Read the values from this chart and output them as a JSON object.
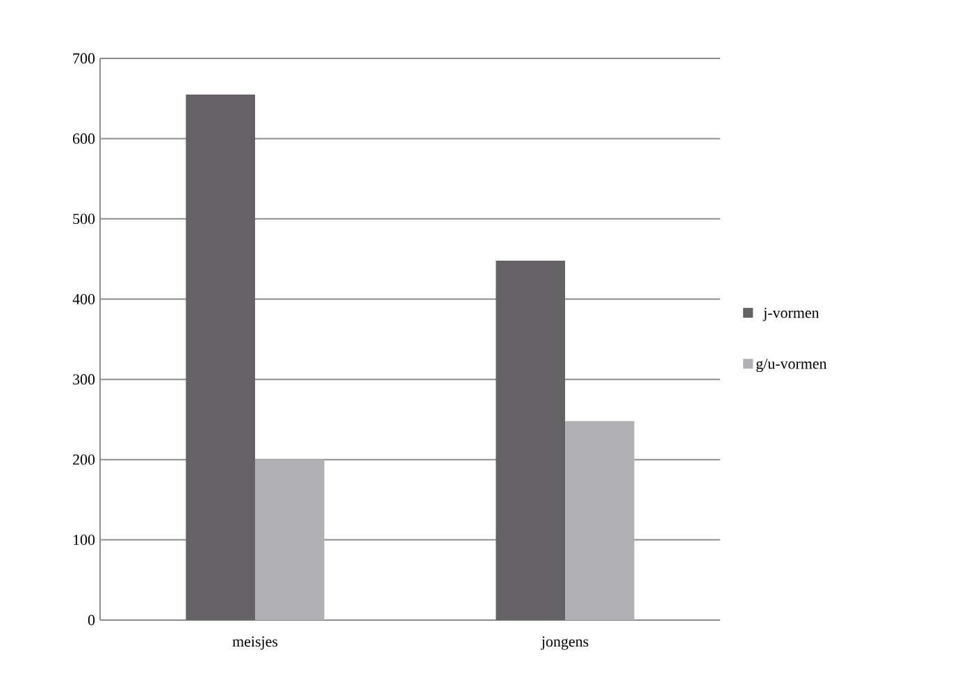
{
  "chart_data": {
    "type": "bar",
    "categories": [
      "meisjes",
      "jongens"
    ],
    "series": [
      {
        "name": "j-vormen",
        "color": "#646265",
        "values": [
          655,
          448
        ]
      },
      {
        "name": "g/u-vormen",
        "color": "#b1b0b4",
        "values": [
          200,
          248
        ]
      }
    ],
    "ylim": [
      0,
      700
    ],
    "yticks": [
      0,
      100,
      200,
      300,
      400,
      500,
      600,
      700
    ],
    "grid": "y",
    "legend": "right"
  }
}
